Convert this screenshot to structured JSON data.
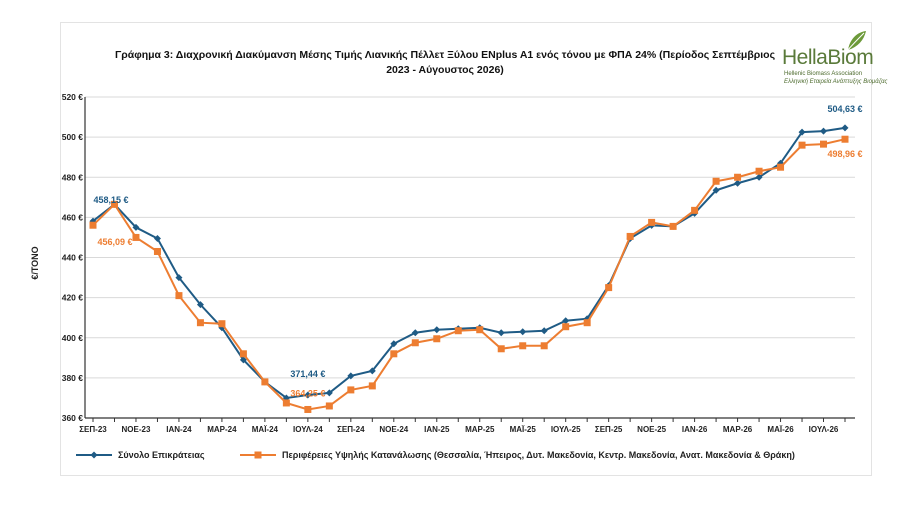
{
  "title_line1": "Γράφημα 3: Διαχρονική Διακύμανση Μέσης Τιμής Λιανικής Πέλλετ Ξύλου ENplus A1 ενός τόνου με ΦΠΑ 24% (Περίοδος Σεπτέμβριος",
  "title_line2": "2023 - Αύγουστος 2026)",
  "logo": {
    "name": "HellaBiom",
    "sub1": "Hellenic Biomass Association",
    "sub2": "Ελληνική Εταιρεία Ανάπτυξης Βιομάζας"
  },
  "colors": {
    "series1": "#1f5b85",
    "series2": "#ed7d31"
  },
  "chart_data": {
    "type": "line",
    "ylabel": "€/ΤΟΝΟ",
    "ylim": [
      360,
      520
    ],
    "yticks": [
      360,
      380,
      400,
      420,
      440,
      460,
      480,
      500,
      520
    ],
    "ytick_labels": [
      "360 €",
      "380 €",
      "400 €",
      "420 €",
      "440 €",
      "460 €",
      "480 €",
      "500 €",
      "520 €"
    ],
    "categories": [
      "ΣΕΠ-23",
      "ΟΚΤ-23",
      "ΝΟΕ-23",
      "ΔΕΚ-23",
      "ΙΑΝ-24",
      "ΦΕΒ-24",
      "ΜΑΡ-24",
      "ΑΠΡ-24",
      "ΜΑΪ-24",
      "ΙΟΥΝ-24",
      "ΙΟΥΛ-24",
      "ΑΥΓ-24",
      "ΣΕΠ-24",
      "ΟΚΤ-24",
      "ΝΟΕ-24",
      "ΔΕΚ-24",
      "ΙΑΝ-25",
      "ΦΕΒ-25",
      "ΜΑΡ-25",
      "ΑΠΡ-25",
      "ΜΑΪ-25",
      "ΙΟΥΝ-25",
      "ΙΟΥΛ-25",
      "ΑΥΓ-25",
      "ΣΕΠ-25",
      "ΟΚΤ-25",
      "ΝΟΕ-25",
      "ΔΕΚ-25",
      "ΙΑΝ-26",
      "ΦΕΒ-26",
      "ΜΑΡ-26",
      "ΑΠΡ-26",
      "ΜΑΪ-26",
      "ΙΟΥΝ-26",
      "ΙΟΥΛ-26",
      "ΑΥΓ-26"
    ],
    "shown_xtick_labels": [
      "ΣΕΠ-23",
      "ΝΟΕ-23",
      "ΙΑΝ-24",
      "ΜΑΡ-24",
      "ΜΑΪ-24",
      "ΙΟΥΛ-24",
      "ΣΕΠ-24",
      "ΝΟΕ-24",
      "ΙΑΝ-25",
      "ΜΑΡ-25",
      "ΜΑΪ-25",
      "ΙΟΥΛ-25",
      "ΣΕΠ-25",
      "ΝΟΕ-25",
      "ΙΑΝ-26",
      "ΜΑΡ-26",
      "ΜΑΪ-26",
      "ΙΟΥΛ-26"
    ],
    "series": [
      {
        "name": "Σύνολο Επικράτειας",
        "marker": "diamond",
        "values": [
          458.15,
          466.5,
          455,
          449.5,
          430,
          416.5,
          405,
          389,
          378,
          370,
          371.44,
          372.5,
          381,
          383.5,
          397,
          402.5,
          404,
          404.5,
          405,
          402.5,
          403,
          403.5,
          408.5,
          409.5,
          426,
          449.5,
          456,
          455.5,
          462,
          473.5,
          477,
          480,
          487,
          502.5,
          503,
          504.63
        ]
      },
      {
        "name": "Περιφέρειες Υψηλής Κατανάλωσης (Θεσσαλία, Ήπειρος, Δυτ. Μακεδονία, Κεντρ. Μακεδονία, Ανατ. Μακεδονία & Θράκη)",
        "marker": "square",
        "values": [
          456.09,
          466.5,
          450,
          443,
          421,
          407.5,
          407,
          392,
          378,
          367.5,
          364.25,
          366,
          374,
          376,
          392,
          397.5,
          399.5,
          403.5,
          404,
          394.5,
          396,
          396,
          405.5,
          407.5,
          425,
          450.5,
          457.5,
          455.5,
          463.5,
          478,
          480,
          483,
          485,
          496,
          496.5,
          498.96
        ]
      }
    ],
    "data_labels": [
      {
        "series": 0,
        "index": 0,
        "text": "458,15 €"
      },
      {
        "series": 1,
        "index": 0,
        "text": "456,09 €"
      },
      {
        "series": 0,
        "index": 10,
        "text": "371,44 €"
      },
      {
        "series": 1,
        "index": 10,
        "text": "364,25 €"
      },
      {
        "series": 0,
        "index": 35,
        "text": "504,63 €"
      },
      {
        "series": 1,
        "index": 35,
        "text": "498,96 €"
      }
    ],
    "grid": "horizontal",
    "legend_position": "bottom"
  }
}
